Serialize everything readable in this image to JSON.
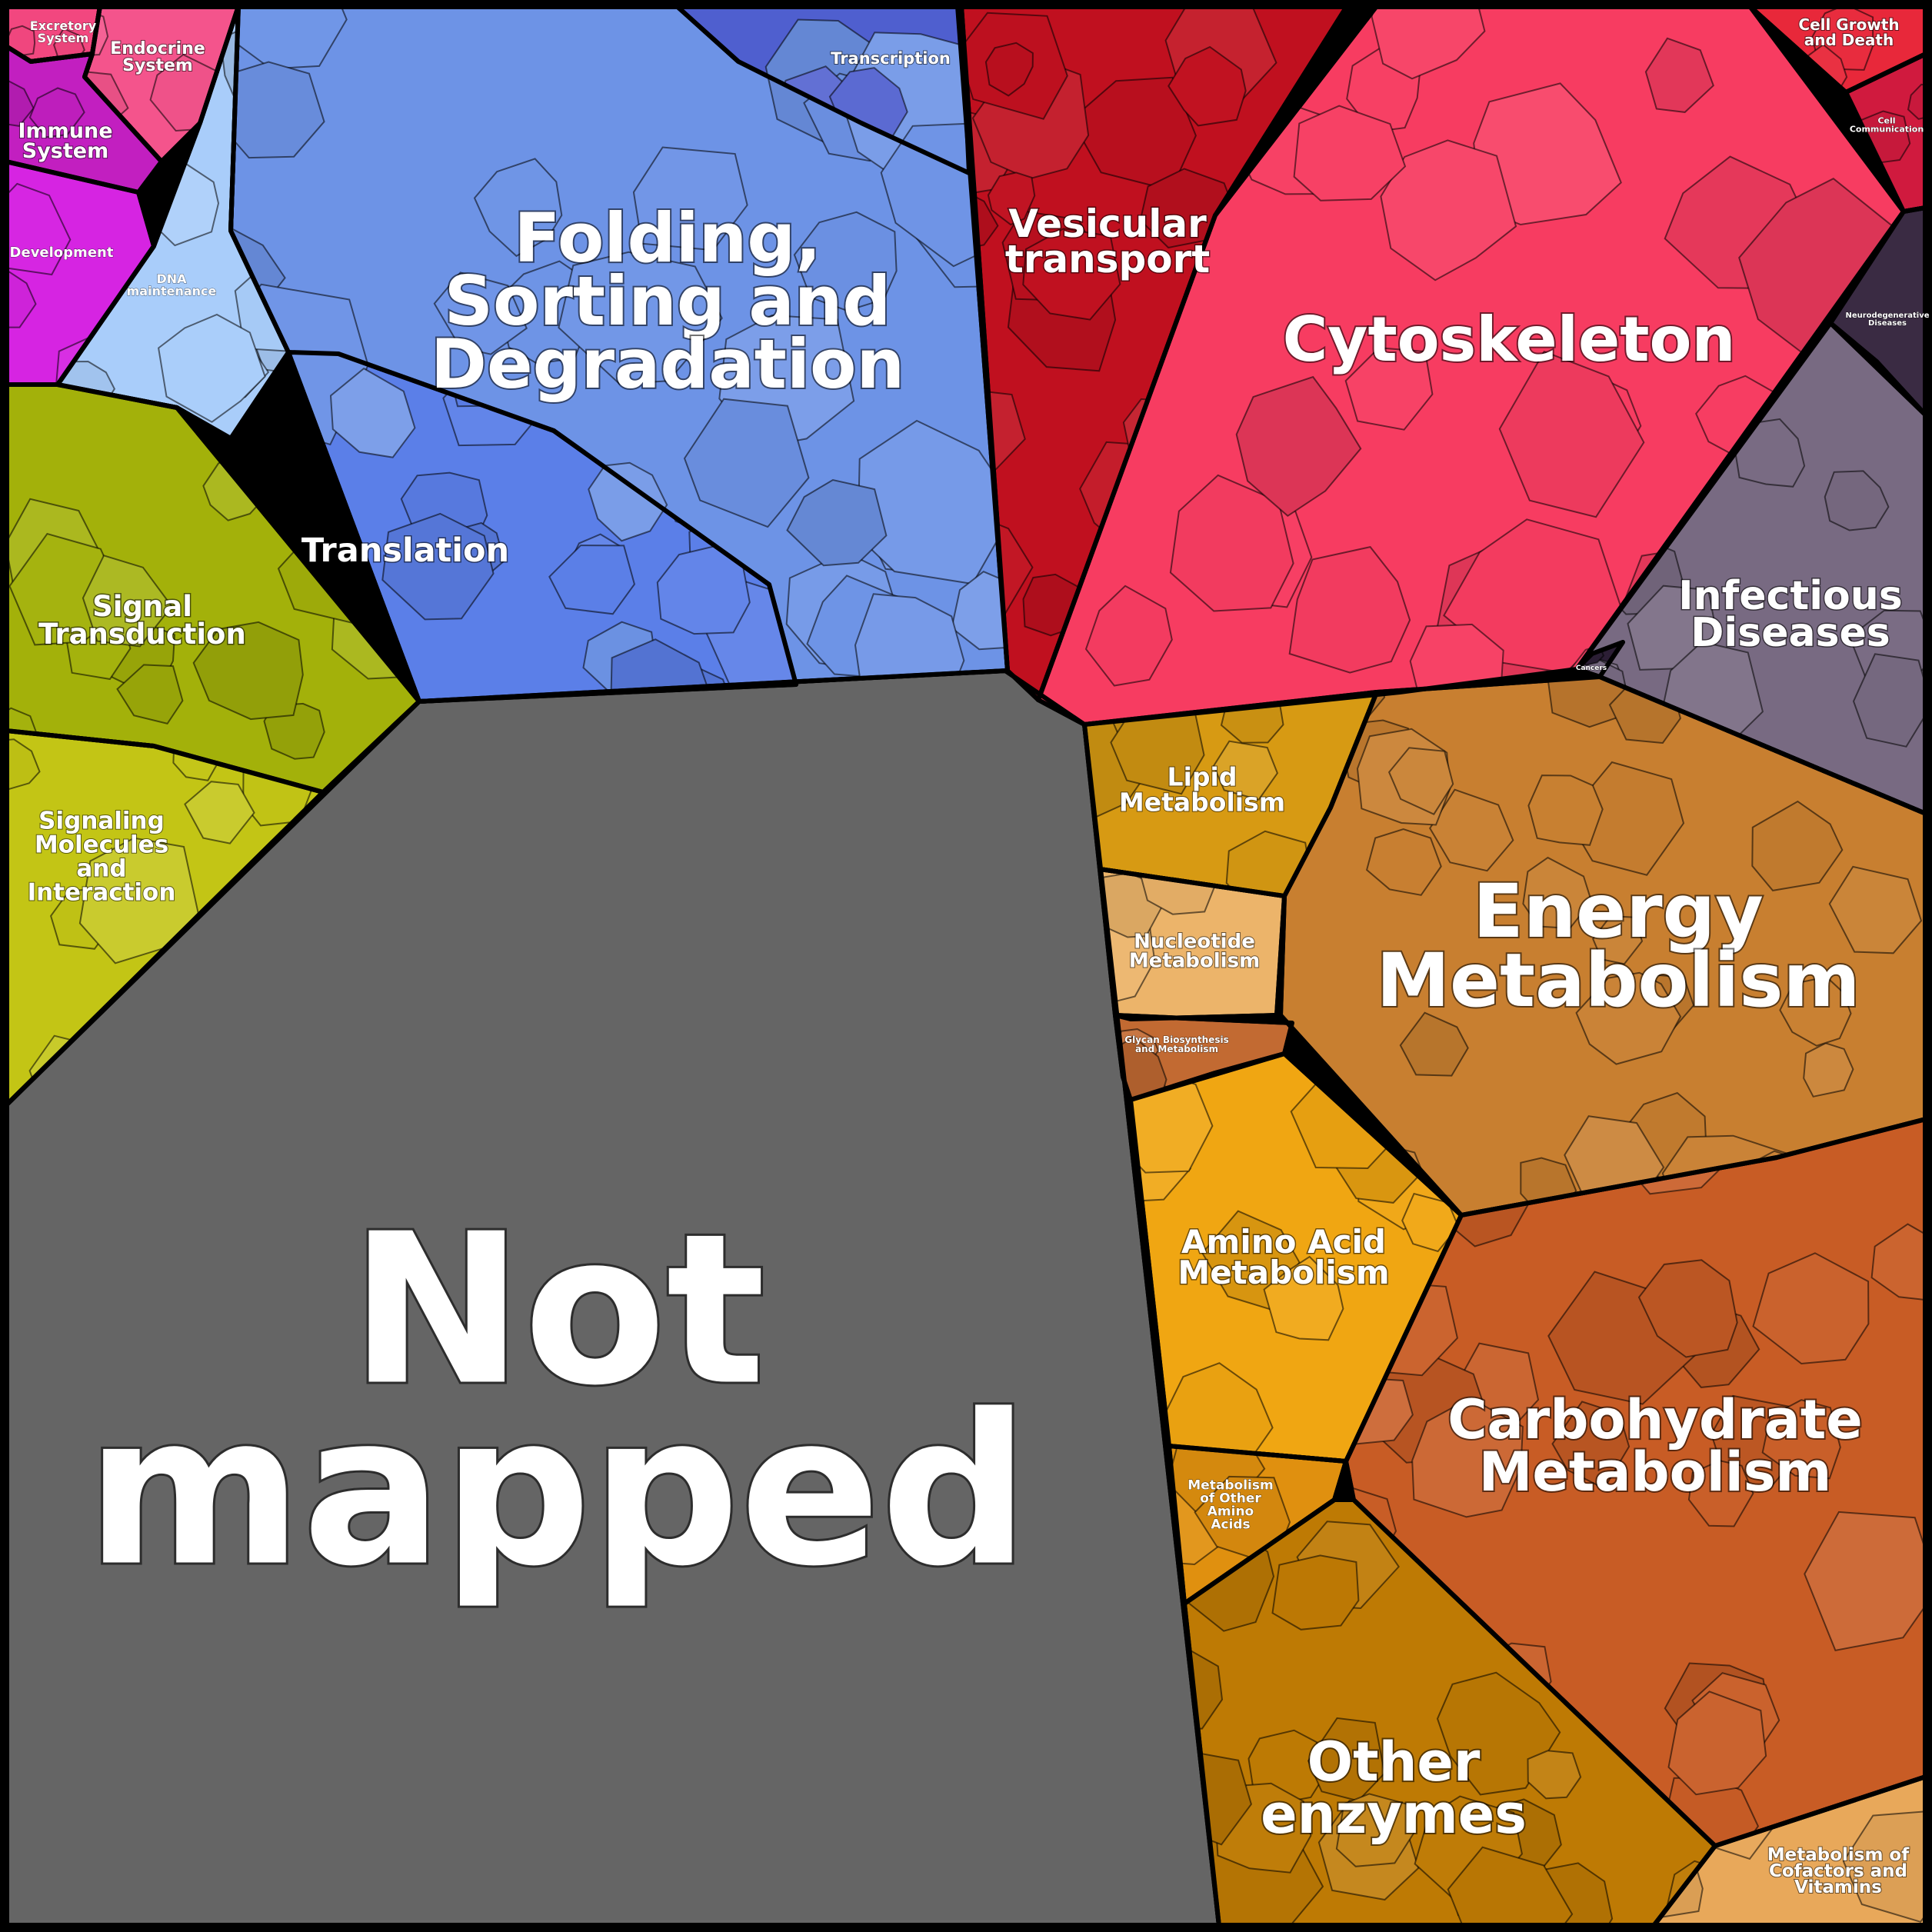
{
  "diagram": {
    "type": "voronoi-treemap",
    "colors": {
      "background": "#000000",
      "label": "#ffffff",
      "border": "#000000"
    },
    "regions": [
      {
        "id": "not-mapped",
        "label": [
          "Not",
          "mapped"
        ],
        "color": "#656565"
      },
      {
        "id": "folding",
        "label": [
          "Folding,",
          "Sorting and",
          "Degradation"
        ],
        "color": "#6d93e6"
      },
      {
        "id": "translation",
        "label": [
          "Translation"
        ],
        "color": "#5b7fe8"
      },
      {
        "id": "transcription",
        "label": [
          "Transcription"
        ],
        "color": "#4f5fcf"
      },
      {
        "id": "dna-maintenance",
        "label": [
          "DNA",
          "maintenance"
        ],
        "color": "#a9cdfa"
      },
      {
        "id": "vesicular",
        "label": [
          "Vesicular",
          "transport"
        ],
        "color": "#c0101f"
      },
      {
        "id": "cytoskeleton",
        "label": [
          "Cytoskeleton"
        ],
        "color": "#f73c61"
      },
      {
        "id": "cell-growth",
        "label": [
          "Cell Growth",
          "and Death"
        ],
        "color": "#e8283a"
      },
      {
        "id": "cell-communication",
        "label": [
          "Cell",
          "Communication"
        ],
        "color": "#d01a3e"
      },
      {
        "id": "neurodegenerative",
        "label": [
          "Neurodegenerative",
          "Diseases"
        ],
        "color": "#3a2b43"
      },
      {
        "id": "infectious",
        "label": [
          "Infectious",
          "Diseases"
        ],
        "color": "#786a82"
      },
      {
        "id": "cancers",
        "label": [
          "Cancers"
        ],
        "color": "#2c1e35"
      },
      {
        "id": "excretory",
        "label": [
          "Excretory",
          "System"
        ],
        "color": "#f2477f"
      },
      {
        "id": "endocrine",
        "label": [
          "Endocrine",
          "System"
        ],
        "color": "#f4548c"
      },
      {
        "id": "immune",
        "label": [
          "Immune",
          "System"
        ],
        "color": "#c21fc0"
      },
      {
        "id": "development",
        "label": [
          "Development"
        ],
        "color": "#d624e2"
      },
      {
        "id": "signal-transduction",
        "label": [
          "Signal",
          "Transduction"
        ],
        "color": "#a3b10a"
      },
      {
        "id": "signaling-molecules",
        "label": [
          "Signaling",
          "Molecules",
          "and",
          "Interaction"
        ],
        "color": "#c3c515"
      },
      {
        "id": "lipid",
        "label": [
          "Lipid",
          "Metabolism"
        ],
        "color": "#d79a13"
      },
      {
        "id": "nucleotide",
        "label": [
          "Nucleotide",
          "Metabolism"
        ],
        "color": "#ecb46a"
      },
      {
        "id": "glycan",
        "label": [
          "Glycan Biosynthesis",
          "and Metabolism"
        ],
        "color": "#c26a32"
      },
      {
        "id": "energy",
        "label": [
          "Energy",
          "Metabolism"
        ],
        "color": "#c87f30"
      },
      {
        "id": "amino-acid",
        "label": [
          "Amino Acid",
          "Metabolism"
        ],
        "color": "#f0a612"
      },
      {
        "id": "other-amino",
        "label": [
          "Metabolism",
          "of Other",
          "Amino",
          "Acids"
        ],
        "color": "#e0900f"
      },
      {
        "id": "carbohydrate",
        "label": [
          "Carbohydrate",
          "Metabolism"
        ],
        "color": "#c85c25"
      },
      {
        "id": "other-enzymes",
        "label": [
          "Other",
          "enzymes"
        ],
        "color": "#be7a04"
      },
      {
        "id": "cofactors",
        "label": [
          "Metabolism of",
          "Cofactors and",
          "Vitamins"
        ],
        "color": "#e8a85a"
      }
    ]
  }
}
